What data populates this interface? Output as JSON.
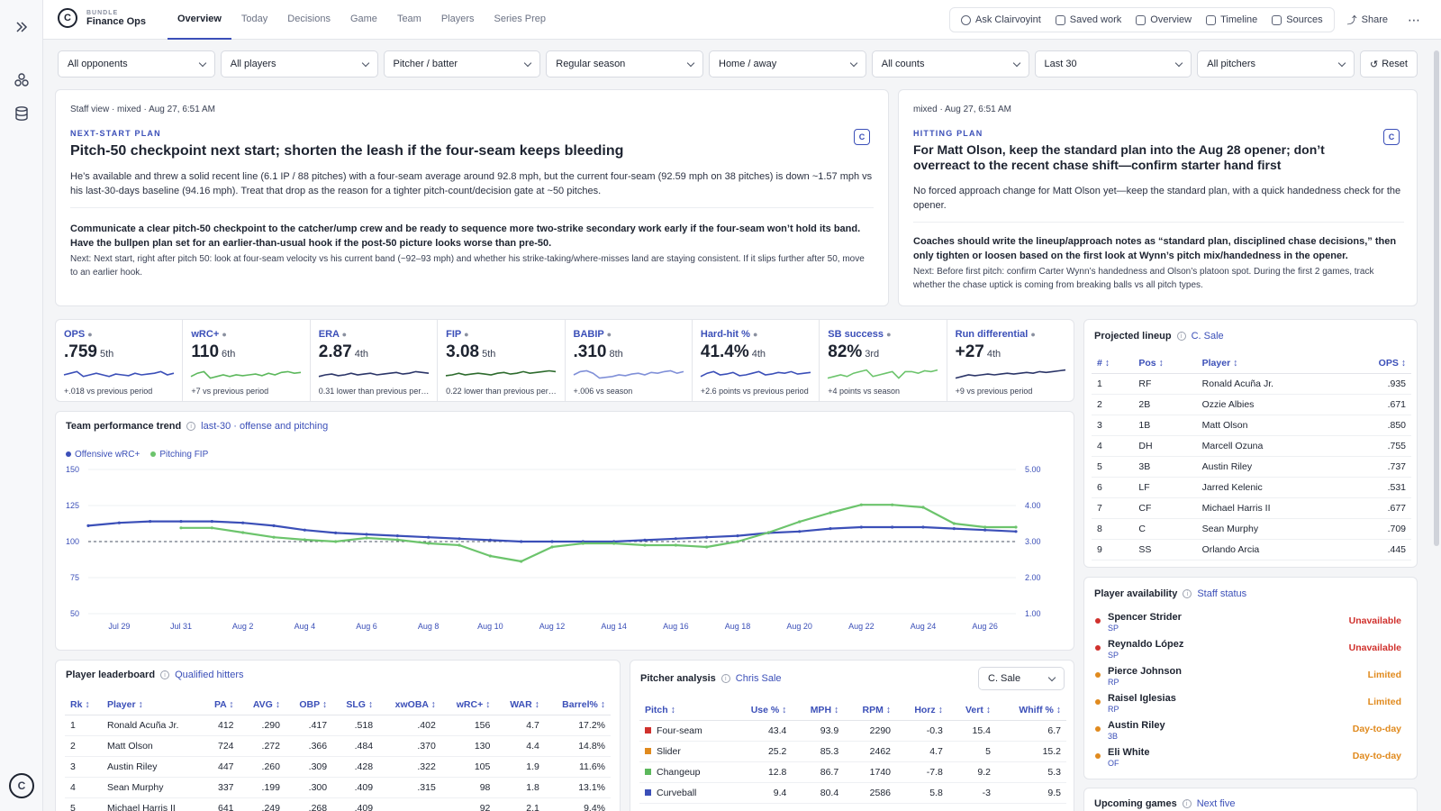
{
  "app": {
    "kicker": "BUNDLE",
    "title": "Finance Ops"
  },
  "nav": [
    "Overview",
    "Today",
    "Decisions",
    "Game",
    "Team",
    "Players",
    "Series Prep"
  ],
  "actions": [
    "Ask Clairvoyint",
    "Saved work",
    "Overview",
    "Timeline",
    "Sources"
  ],
  "share_label": "Share",
  "filters": [
    "All opponents",
    "All players",
    "Pitcher / batter",
    "Regular season",
    "Home / away",
    "All counts",
    "Last 30",
    "All pitchers"
  ],
  "reset_label": "Reset",
  "plan_left": {
    "meta": "Staff view  ·  mixed  ·  Aug 27, 6:51 AM",
    "eyebrow": "NEXT-START PLAN",
    "headline": "Pitch-50 checkpoint next start; shorten the leash if the four-seam keeps bleeding",
    "body": "He’s available and threw a solid recent line (6.1 IP / 88 pitches) with a four-seam average around 92.8 mph, but the current four-seam (92.59 mph on 38 pitches) is down ~1.57 mph vs his last-30-days baseline (94.16 mph). Treat that drop as the reason for a tighter pitch-count/decision gate at ~50 pitches.",
    "strong": "Communicate a clear pitch-50 checkpoint to the catcher/ump crew and be ready to sequence more two-strike secondary work early if the four-seam won’t hold its band. Have the bullpen plan set for an earlier-than-usual hook if the post-50 picture looks worse than pre-50.",
    "next": "Next: Next start, right after pitch 50: look at four-seam velocity vs his current band (~92–93 mph) and whether his strike-taking/where-misses land are staying consistent. If it slips further after 50, move to an earlier hook."
  },
  "plan_right": {
    "meta": "mixed  ·  Aug 27, 6:51 AM",
    "eyebrow": "HITTING PLAN",
    "headline": "For Matt Olson, keep the standard plan into the Aug 28 opener; don’t overreact to the recent chase shift—confirm starter hand first",
    "body": "No forced approach change for Matt Olson yet—keep the standard plan, with a quick handedness check for the opener.",
    "strong": "Coaches should write the lineup/approach notes as “standard plan, disciplined chase decisions,” then only tighten or loosen based on the first look at Wynn’s pitch mix/handedness in the opener.",
    "next": "Next: Before first pitch: confirm Carter Wynn’s handedness and Olson’s platoon spot. During the first 2 games, track whether the chase uptick is coming from breaking balls vs all pitch types."
  },
  "kpis": [
    {
      "label": "OPS",
      "value": ".759",
      "rank": "5th",
      "delta": "+.018 vs previous period",
      "color": "#3b4fb8",
      "trend": [
        0.5,
        0.6,
        0.7,
        0.4,
        0.5,
        0.6,
        0.5,
        0.4,
        0.55,
        0.5,
        0.45,
        0.6,
        0.5,
        0.55,
        0.6,
        0.7,
        0.5,
        0.6
      ]
    },
    {
      "label": "wRC+",
      "value": "110",
      "rank": "6th",
      "delta": "+7 vs previous period",
      "color": "#5cb85c",
      "trend": [
        0.4,
        0.6,
        0.7,
        0.3,
        0.4,
        0.5,
        0.4,
        0.5,
        0.45,
        0.5,
        0.55,
        0.45,
        0.6,
        0.5,
        0.65,
        0.7,
        0.6,
        0.65
      ]
    },
    {
      "label": "ERA",
      "value": "2.87",
      "rank": "4th",
      "delta": "0.31 lower than previous period",
      "color": "#2b3568",
      "trend": [
        0.4,
        0.5,
        0.55,
        0.45,
        0.5,
        0.6,
        0.5,
        0.55,
        0.6,
        0.5,
        0.55,
        0.6,
        0.65,
        0.55,
        0.6,
        0.7,
        0.65,
        0.6
      ]
    },
    {
      "label": "FIP",
      "value": "3.08",
      "rank": "5th",
      "delta": "0.22 lower than previous period",
      "color": "#2d6b2d",
      "trend": [
        0.45,
        0.5,
        0.6,
        0.5,
        0.55,
        0.6,
        0.55,
        0.5,
        0.6,
        0.65,
        0.55,
        0.6,
        0.7,
        0.6,
        0.65,
        0.7,
        0.75,
        0.7
      ]
    },
    {
      "label": "BABIP",
      "value": ".310",
      "rank": "8th",
      "delta": "+.006 vs season",
      "color": "#8090d8",
      "trend": [
        0.5,
        0.7,
        0.75,
        0.6,
        0.3,
        0.35,
        0.4,
        0.5,
        0.45,
        0.55,
        0.6,
        0.5,
        0.65,
        0.6,
        0.7,
        0.75,
        0.6,
        0.7
      ]
    },
    {
      "label": "Hard-hit %",
      "value": "41.4%",
      "rank": "4th",
      "delta": "+2.6 points vs previous period",
      "color": "#3b4fb8",
      "trend": [
        0.4,
        0.6,
        0.7,
        0.5,
        0.55,
        0.65,
        0.45,
        0.5,
        0.6,
        0.7,
        0.5,
        0.55,
        0.65,
        0.6,
        0.7,
        0.55,
        0.6,
        0.65
      ]
    },
    {
      "label": "SB success",
      "value": "82%",
      "rank": "3rd",
      "delta": "+4 points vs season",
      "color": "#6cc46c",
      "trend": [
        0.3,
        0.4,
        0.5,
        0.4,
        0.6,
        0.7,
        0.8,
        0.4,
        0.5,
        0.6,
        0.7,
        0.3,
        0.7,
        0.7,
        0.6,
        0.75,
        0.7,
        0.8
      ]
    },
    {
      "label": "Run differential",
      "value": "+27",
      "rank": "4th",
      "delta": "+9 vs previous period",
      "color": "#2b3568",
      "trend": [
        0.3,
        0.4,
        0.5,
        0.45,
        0.5,
        0.55,
        0.5,
        0.55,
        0.6,
        0.55,
        0.6,
        0.65,
        0.6,
        0.7,
        0.65,
        0.7,
        0.75,
        0.8
      ]
    }
  ],
  "trend": {
    "title": "Team performance trend",
    "subtitle": "last-30 · offense and pitching",
    "legend": [
      "Offensive wRC+",
      "Pitching FIP"
    ],
    "left_ticks": [
      "150",
      "125",
      "100",
      "75",
      "50"
    ],
    "right_ticks": [
      "5.00",
      "4.00",
      "3.00",
      "2.00",
      "1.00"
    ],
    "x_labels": [
      "Jul 29",
      "Jul 31",
      "Aug 2",
      "Aug 4",
      "Aug 6",
      "Aug 8",
      "Aug 10",
      "Aug 12",
      "Aug 14",
      "Aug 16",
      "Aug 18",
      "Aug 20",
      "Aug 22",
      "Aug 24",
      "Aug 26"
    ]
  },
  "chart_data": {
    "type": "line",
    "x": [
      "Jul 28",
      "Jul 29",
      "Jul 30",
      "Jul 31",
      "Aug 1",
      "Aug 2",
      "Aug 3",
      "Aug 4",
      "Aug 5",
      "Aug 6",
      "Aug 7",
      "Aug 8",
      "Aug 9",
      "Aug 10",
      "Aug 11",
      "Aug 12",
      "Aug 13",
      "Aug 14",
      "Aug 15",
      "Aug 16",
      "Aug 17",
      "Aug 18",
      "Aug 19",
      "Aug 20",
      "Aug 21",
      "Aug 22",
      "Aug 23",
      "Aug 24",
      "Aug 25",
      "Aug 26",
      "Aug 27"
    ],
    "series": [
      {
        "name": "Offensive wRC+",
        "axis": "left",
        "values": [
          111,
          113,
          114,
          114,
          114,
          113,
          111,
          108,
          106,
          105,
          104,
          103,
          102,
          101,
          100,
          100,
          100,
          100,
          101,
          102,
          103,
          104,
          106,
          107,
          109,
          110,
          110,
          110,
          109,
          108,
          107
        ]
      },
      {
        "name": "Pitching FIP",
        "axis": "right",
        "values": [
          null,
          null,
          null,
          3.38,
          3.38,
          3.25,
          3.12,
          3.05,
          3.0,
          3.1,
          3.05,
          2.95,
          2.9,
          2.6,
          2.45,
          2.85,
          2.95,
          2.95,
          2.9,
          2.9,
          2.85,
          3.0,
          3.25,
          3.55,
          3.8,
          4.02,
          4.02,
          3.95,
          3.5,
          3.4,
          3.4
        ]
      }
    ],
    "reference": 100,
    "ylim": [
      50,
      150
    ],
    "y2lim": [
      1.0,
      5.0
    ]
  },
  "lineup": {
    "title": "Projected lineup",
    "subtitle": "C. Sale",
    "headers": [
      "#",
      "Pos",
      "Player",
      "OPS"
    ],
    "rows": [
      [
        "1",
        "RF",
        "Ronald Acuña Jr.",
        ".935"
      ],
      [
        "2",
        "2B",
        "Ozzie Albies",
        ".671"
      ],
      [
        "3",
        "1B",
        "Matt Olson",
        ".850"
      ],
      [
        "4",
        "DH",
        "Marcell Ozuna",
        ".755"
      ],
      [
        "5",
        "3B",
        "Austin Riley",
        ".737"
      ],
      [
        "6",
        "LF",
        "Jarred Kelenic",
        ".531"
      ],
      [
        "7",
        "CF",
        "Michael Harris II",
        ".677"
      ],
      [
        "8",
        "C",
        "Sean Murphy",
        ".709"
      ],
      [
        "9",
        "SS",
        "Orlando Arcia",
        ".445"
      ]
    ]
  },
  "availability": {
    "title": "Player availability",
    "subtitle": "Staff status",
    "rows": [
      {
        "name": "Spencer Strider",
        "pos": "SP",
        "status": "Unavailable",
        "color": "#d0312d"
      },
      {
        "name": "Reynaldo López",
        "pos": "SP",
        "status": "Unavailable",
        "color": "#d0312d"
      },
      {
        "name": "Pierce Johnson",
        "pos": "RP",
        "status": "Limited",
        "color": "#e08a1e"
      },
      {
        "name": "Raisel Iglesias",
        "pos": "RP",
        "status": "Limited",
        "color": "#e08a1e"
      },
      {
        "name": "Austin Riley",
        "pos": "3B",
        "status": "Day-to-day",
        "color": "#e08a1e"
      },
      {
        "name": "Eli White",
        "pos": "OF",
        "status": "Day-to-day",
        "color": "#e08a1e"
      }
    ]
  },
  "upcoming": {
    "title": "Upcoming games",
    "subtitle": "Next five"
  },
  "leaderboard": {
    "title": "Player leaderboard",
    "subtitle": "Qualified hitters",
    "headers": [
      "Rk",
      "Player",
      "PA",
      "AVG",
      "OBP",
      "SLG",
      "xwOBA",
      "wRC+",
      "WAR",
      "Barrel%"
    ],
    "rows": [
      [
        "1",
        "Ronald Acuña Jr.",
        "412",
        ".290",
        ".417",
        ".518",
        ".402",
        "156",
        "4.7",
        "17.2%"
      ],
      [
        "2",
        "Matt Olson",
        "724",
        ".272",
        ".366",
        ".484",
        ".370",
        "130",
        "4.4",
        "14.8%"
      ],
      [
        "3",
        "Austin Riley",
        "447",
        ".260",
        ".309",
        ".428",
        ".322",
        "105",
        "1.9",
        "11.6%"
      ],
      [
        "4",
        "Sean Murphy",
        "337",
        ".199",
        ".300",
        ".409",
        ".315",
        "98",
        "1.8",
        "13.1%"
      ],
      [
        "5",
        "Michael Harris II",
        "641",
        ".249",
        ".268",
        ".409",
        "",
        "92",
        "2.1",
        "9.4%"
      ]
    ]
  },
  "pitcher": {
    "title": "Pitcher analysis",
    "subtitle": "Chris Sale",
    "select": "C. Sale",
    "headers": [
      "Pitch",
      "Use %",
      "MPH",
      "RPM",
      "Horz",
      "Vert",
      "Whiff %"
    ],
    "rows": [
      {
        "cells": [
          "Four-seam",
          "43.4",
          "93.9",
          "2290",
          "-0.3",
          "15.4",
          "6.7"
        ],
        "color": "#d0312d"
      },
      {
        "cells": [
          "Slider",
          "25.2",
          "85.3",
          "2462",
          "4.7",
          "5",
          "15.2"
        ],
        "color": "#e08a1e"
      },
      {
        "cells": [
          "Changeup",
          "12.8",
          "86.7",
          "1740",
          "-7.8",
          "9.2",
          "5.3"
        ],
        "color": "#5cb85c"
      },
      {
        "cells": [
          "Curveball",
          "9.4",
          "80.4",
          "2586",
          "5.8",
          "-3",
          "9.5"
        ],
        "color": "#3b4fb8"
      }
    ]
  }
}
